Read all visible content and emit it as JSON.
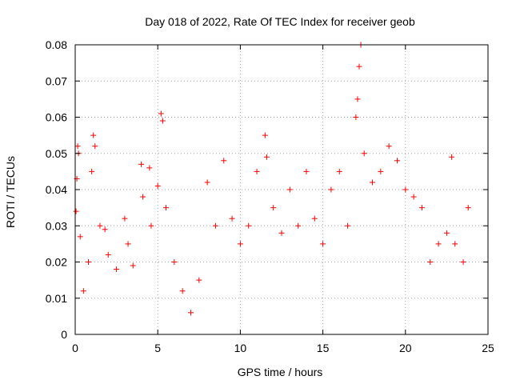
{
  "chart_data": {
    "type": "scatter",
    "title": "Day 018 of 2022, Rate Of TEC Index for receiver geob",
    "xlabel": "GPS time / hours",
    "ylabel": "ROTI / TECUs",
    "xlim": [
      0,
      25
    ],
    "ylim": [
      0,
      0.08
    ],
    "x_ticks": [
      "0",
      "5",
      "10",
      "15",
      "20",
      "25"
    ],
    "y_ticks": [
      "0",
      "0.01",
      "0.02",
      "0.03",
      "0.04",
      "0.05",
      "0.06",
      "0.07",
      "0.08"
    ],
    "grid": true,
    "marker": "+",
    "color": "#ff0000",
    "series": [
      {
        "x": [
          0.05,
          0.1,
          0.15,
          0.2,
          0.3,
          0.5,
          0.8,
          1.0,
          1.1,
          1.2,
          1.5,
          1.8,
          2.0,
          2.5,
          3.0,
          3.2,
          3.5,
          4.0,
          4.1,
          4.5,
          4.6,
          5.0,
          5.2,
          5.3,
          5.5,
          6.0,
          6.5,
          7.0,
          7.5,
          8.0,
          8.5,
          9.0,
          9.5,
          10.0,
          10.5,
          11.0,
          11.5,
          11.6,
          12.0,
          12.5,
          13.0,
          13.5,
          14.0,
          14.5,
          15.0,
          15.5,
          16.0,
          16.5,
          17.0,
          17.1,
          17.2,
          17.3,
          17.5,
          18.0,
          18.5,
          19.0,
          19.5,
          20.0,
          20.5,
          21.0,
          21.5,
          22.0,
          22.5,
          22.8,
          23.0,
          23.5,
          23.8
        ],
        "y": [
          0.034,
          0.043,
          0.052,
          0.05,
          0.027,
          0.012,
          0.02,
          0.045,
          0.055,
          0.052,
          0.03,
          0.029,
          0.022,
          0.018,
          0.032,
          0.025,
          0.019,
          0.047,
          0.038,
          0.046,
          0.03,
          0.041,
          0.061,
          0.059,
          0.035,
          0.02,
          0.012,
          0.006,
          0.015,
          0.042,
          0.03,
          0.048,
          0.032,
          0.025,
          0.03,
          0.045,
          0.055,
          0.049,
          0.035,
          0.028,
          0.04,
          0.03,
          0.045,
          0.032,
          0.025,
          0.04,
          0.045,
          0.03,
          0.06,
          0.065,
          0.074,
          0.08,
          0.05,
          0.042,
          0.045,
          0.052,
          0.048,
          0.04,
          0.038,
          0.035,
          0.02,
          0.025,
          0.028,
          0.049,
          0.025,
          0.02,
          0.035
        ]
      }
    ]
  }
}
